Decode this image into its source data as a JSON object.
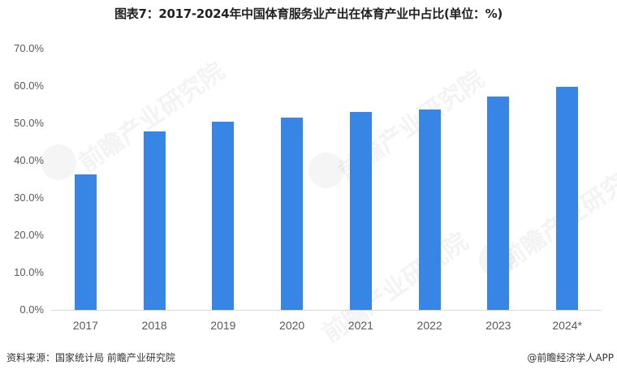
{
  "title": "图表7：2017-2024年中国体育服务业产出在体育产业中占比(单位：%)",
  "footer": {
    "source": "资料来源：国家统计局 前瞻产业研究院",
    "credit": "@前瞻经济学人APP"
  },
  "watermark": "前瞻产业研究院",
  "colors": {
    "bar": "#3785E5",
    "axis": "#D9D9D9",
    "tick_text": "#595959"
  },
  "y_ticks": [
    "70.0%",
    "60.0%",
    "50.0%",
    "40.0%",
    "30.0%",
    "20.0%",
    "10.0%",
    "0.0%"
  ],
  "chart_data": {
    "type": "bar",
    "title": "图表7：2017-2024年中国体育服务业产出在体育产业中占比(单位：%)",
    "categories": [
      "2017",
      "2018",
      "2019",
      "2020",
      "2021",
      "2022",
      "2023",
      "2024*"
    ],
    "values": [
      36.3,
      47.8,
      50.4,
      51.5,
      53.0,
      53.7,
      57.2,
      59.8
    ],
    "xlabel": "",
    "ylabel": "",
    "ylim": [
      0,
      70
    ],
    "y_tick_format": "0.0%",
    "grid": false,
    "legend": null
  }
}
